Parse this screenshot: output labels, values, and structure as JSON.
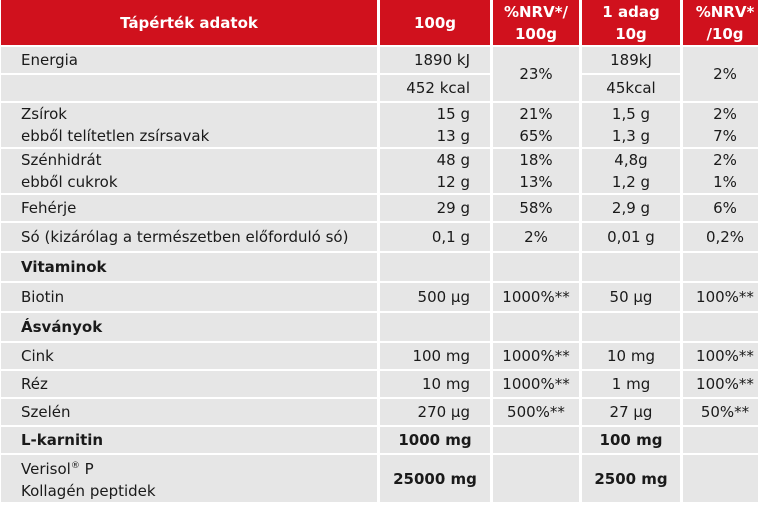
{
  "header": {
    "col1": "Tápérték adatok",
    "col2": "100g",
    "col3": [
      "%NRV*/",
      "100g"
    ],
    "col4": [
      "1 adag",
      "10g"
    ],
    "col5": [
      "%NRV*",
      "/10g"
    ]
  },
  "rows": {
    "energia": {
      "label": "Energia",
      "kj": "1890 kJ",
      "kcal": "452 kcal",
      "nrv100": "23%",
      "serv_kj": "189kJ",
      "serv_kcal": "45kcal",
      "nrv10": "2%"
    },
    "zsirok": {
      "label": "Zsírok",
      "sub": "ebből telítetlen zsírsavak",
      "v100": "15 g",
      "v100_sub": "13 g",
      "nrv100": "21%",
      "nrv100_sub": "65%",
      "serv": "1,5 g",
      "serv_sub": "1,3 g",
      "nrv10": "2%",
      "nrv10_sub": "7%"
    },
    "szenhidrat": {
      "label": "Szénhidrát",
      "sub": "ebből cukrok",
      "v100": "48 g",
      "v100_sub": "12 g",
      "nrv100": "18%",
      "nrv100_sub": "13%",
      "serv": "4,8g",
      "serv_sub": "1,2 g",
      "nrv10": "2%",
      "nrv10_sub": "1%"
    },
    "feherje": {
      "label": "Fehérje",
      "v100": "29 g",
      "nrv100": "58%",
      "serv": "2,9 g",
      "nrv10": "6%"
    },
    "so": {
      "label": "Só (kizárólag a természetben előforduló só)",
      "v100": "0,1 g",
      "nrv100": "2%",
      "serv": "0,01 g",
      "nrv10": "0,2%"
    },
    "vitaminok": {
      "label": "Vitaminok"
    },
    "biotin": {
      "label": "Biotin",
      "v100": "500 µg",
      "nrv100": "1000%**",
      "serv": "50 µg",
      "nrv10": "100%**"
    },
    "asvanyok": {
      "label": "Ásványok"
    },
    "cink": {
      "label": "Cink",
      "v100": "100 mg",
      "nrv100": "1000%**",
      "serv": "10 mg",
      "nrv10": "100%**"
    },
    "rez": {
      "label": "Réz",
      "v100": "10 mg",
      "nrv100": "1000%**",
      "serv": "1 mg",
      "nrv10": "100%**"
    },
    "szelen": {
      "label": "Szelén",
      "v100": "270 µg",
      "nrv100": "500%**",
      "serv": "27 µg",
      "nrv10": "50%**"
    },
    "karnitin": {
      "label": "L-karnitin",
      "v100": "1000 mg",
      "serv": "100 mg"
    },
    "verisol": {
      "label": "Verisol",
      "sup": "®",
      "label_end": " P",
      "sub": "Kollagén peptidek",
      "v100": "25000 mg",
      "serv": "2500 mg"
    }
  }
}
